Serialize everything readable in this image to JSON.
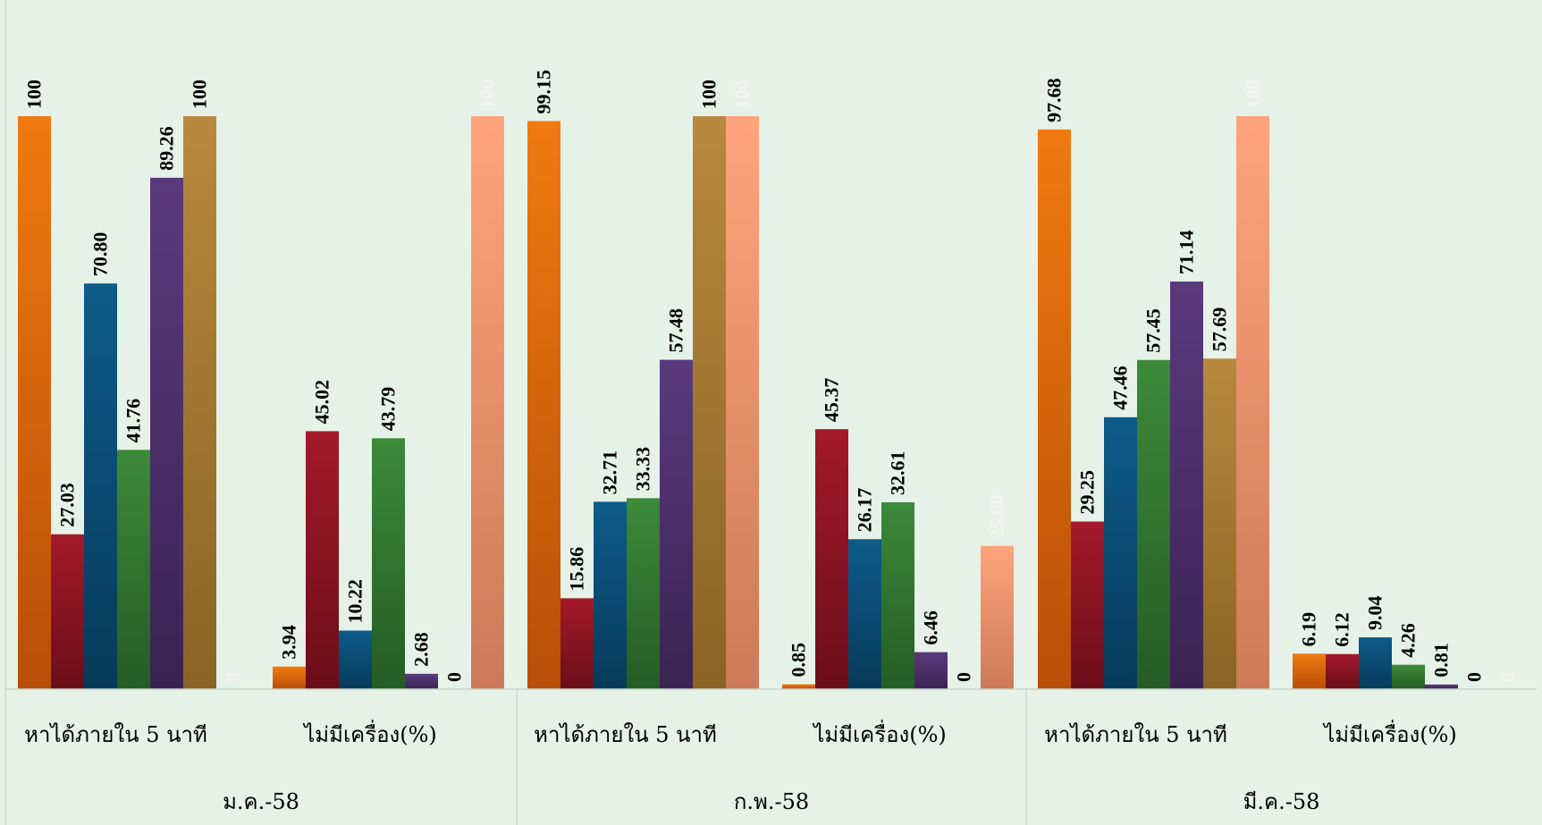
{
  "chart_data": {
    "type": "bar",
    "ylim": [
      0,
      100
    ],
    "grid": false,
    "legend": "none",
    "groups": [
      {
        "month": "ม.ค.-58",
        "categories": [
          {
            "label": "หาได้ภายใน 5 นาที",
            "values": [
              100,
              27.03,
              70.8,
              41.76,
              89.26,
              100,
              0
            ],
            "value_labels": [
              "100",
              "27.03",
              "70.80",
              "41.76",
              "89.26",
              "100",
              "0"
            ]
          },
          {
            "label": "ไม่มีเครื่อง(%)",
            "values": [
              3.94,
              45.02,
              10.22,
              43.79,
              2.68,
              0,
              100
            ],
            "value_labels": [
              "3.94",
              "45.02",
              "10.22",
              "43.79",
              "2.68",
              "0",
              "100"
            ]
          }
        ]
      },
      {
        "month": "ก.พ.-58",
        "categories": [
          {
            "label": "หาได้ภายใน 5 นาที",
            "values": [
              99.15,
              15.86,
              32.71,
              33.33,
              57.48,
              100,
              100
            ],
            "value_labels": [
              "99.15",
              "15.86",
              "32.71",
              "33.33",
              "57.48",
              "100",
              "100"
            ]
          },
          {
            "label": "ไม่มีเครื่อง(%)",
            "values": [
              0.85,
              45.37,
              26.17,
              32.61,
              6.46,
              0,
              25.0
            ],
            "value_labels": [
              "0.85",
              "45.37",
              "26.17",
              "32.61",
              "6.46",
              "0",
              "25.00"
            ]
          }
        ]
      },
      {
        "month": "มี.ค.-58",
        "categories": [
          {
            "label": "หาได้ภายใน 5 นาที",
            "values": [
              97.68,
              29.25,
              47.46,
              57.45,
              71.14,
              57.69,
              100
            ],
            "value_labels": [
              "97.68",
              "29.25",
              "47.46",
              "57.45",
              "71.14",
              "57.69",
              "100"
            ]
          },
          {
            "label": "ไม่มีเครื่อง(%)",
            "values": [
              6.19,
              6.12,
              9.04,
              4.26,
              0.81,
              0,
              0
            ],
            "value_labels": [
              "6.19",
              "6.12",
              "9.04",
              "4.26",
              "0.81",
              "0",
              "0"
            ]
          }
        ]
      }
    ],
    "series_colors": [
      [
        "#f07a10",
        "#b84e08"
      ],
      [
        "#a3192a",
        "#6b0e19"
      ],
      [
        "#0e5b8a",
        "#073a5a"
      ],
      [
        "#3c8a3a",
        "#255c25"
      ],
      [
        "#5a3a7e",
        "#3a2352"
      ],
      [
        "#b8893e",
        "#8a6324"
      ],
      [
        "#ffa47c",
        "#cc7a58"
      ]
    ],
    "label_colors": [
      "#000000",
      "#000000",
      "#000000",
      "#000000",
      "#000000",
      "#000000",
      "#f4f4f4"
    ]
  }
}
